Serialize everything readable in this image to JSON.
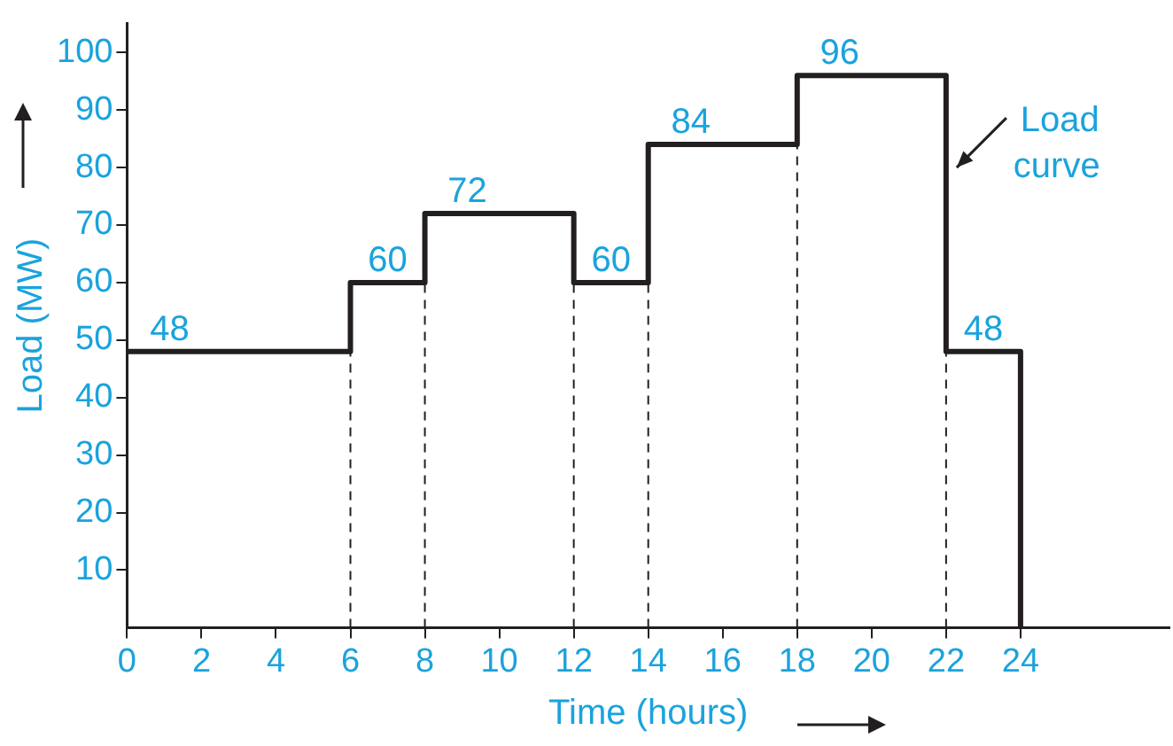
{
  "chart_data": {
    "type": "step",
    "xlabel": "Time (hours)",
    "ylabel": "Load (MW)",
    "x": [
      0,
      6,
      8,
      12,
      14,
      18,
      22,
      24
    ],
    "series": [
      {
        "color": "#231f20",
        "values": [
          48,
          60,
          72,
          60,
          84,
          96,
          48,
          0
        ],
        "value_labels": [
          "48",
          "60",
          "72",
          "60",
          "84",
          "96",
          "48",
          null
        ]
      }
    ],
    "xlim": [
      0,
      28
    ],
    "xticks": [
      0,
      2,
      4,
      6,
      8,
      10,
      12,
      14,
      16,
      18,
      20,
      22,
      24
    ],
    "ylim": [
      0,
      105
    ],
    "yticks": [
      10,
      20,
      30,
      40,
      50,
      60,
      70,
      80,
      90,
      100
    ],
    "ref_lines": [
      {
        "axis": "x",
        "value": 6,
        "line_style": "dashed"
      },
      {
        "axis": "x",
        "value": 8,
        "line_style": "dashed"
      },
      {
        "axis": "x",
        "value": 12,
        "line_style": "dashed"
      },
      {
        "axis": "x",
        "value": 14,
        "line_style": "dashed"
      },
      {
        "axis": "x",
        "value": 18,
        "line_style": "dashed"
      },
      {
        "axis": "x",
        "value": 22,
        "line_style": "dashed"
      }
    ],
    "annotations": [
      {
        "text": "Load curve",
        "x": 22,
        "y": 80
      }
    ],
    "grid": false,
    "legend": false,
    "marker": "none",
    "line_style": "solid"
  }
}
